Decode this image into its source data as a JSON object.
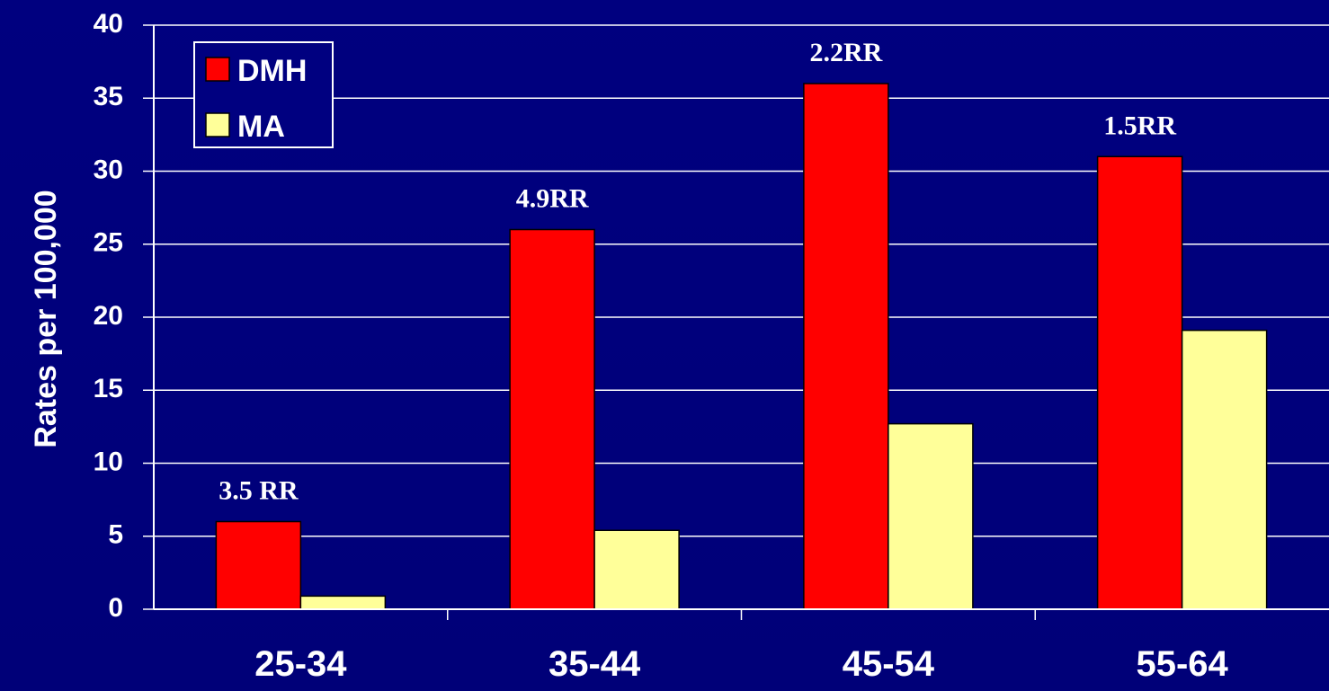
{
  "chart_data": {
    "type": "bar",
    "categories": [
      "25-34",
      "35-44",
      "45-54",
      "55-64"
    ],
    "series": [
      {
        "name": "DMH",
        "color": "#ff0000",
        "values": [
          6,
          26,
          36,
          31
        ]
      },
      {
        "name": "MA",
        "color": "#ffff99",
        "values": [
          0.9,
          5.4,
          12.7,
          19.1
        ]
      }
    ],
    "annotations": [
      "3.5 RR",
      "4.9RR",
      "2.2RR",
      "1.5RR"
    ],
    "xlabel": "",
    "ylabel": "Rates per 100,000",
    "ylim": [
      0,
      40
    ],
    "yticks": [
      0,
      5,
      10,
      15,
      20,
      25,
      30,
      35,
      40
    ],
    "grid": true,
    "legend_position": "top-left",
    "background_color": "#000080",
    "axis_color": "#ffffff"
  }
}
